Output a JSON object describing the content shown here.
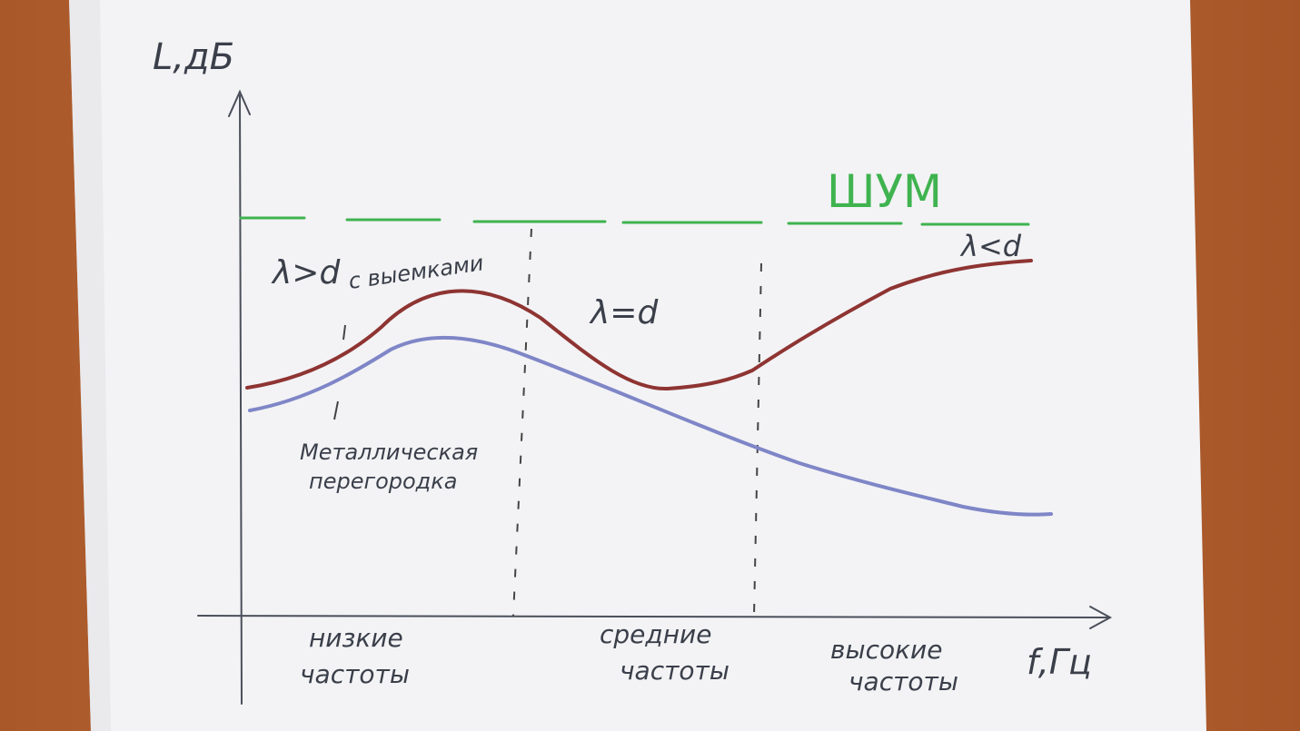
{
  "diagram": {
    "y_axis_label": "L,дБ",
    "x_axis_label": "f,Гц",
    "noise_label": "ШУМ",
    "regions": [
      {
        "condition": "λ>d",
        "band_line1": "низкие",
        "band_line2": "частоты"
      },
      {
        "condition": "λ=d",
        "band_line1": "средние",
        "band_line2": "частоты"
      },
      {
        "condition": "λ<d",
        "band_line1": "высокие",
        "band_line2": "частоты"
      }
    ],
    "curves": [
      {
        "label": "с выемками"
      },
      {
        "label_line1": "Металлическая",
        "label_line2": "перегородка"
      }
    ],
    "colors": {
      "noise_line": "#3fb34f",
      "upper_curve": "#8e3432",
      "lower_curve": "#7f86c7",
      "ink": "#3a3f4a",
      "paper": "#f4f4f6",
      "table": "#b5652f"
    }
  }
}
